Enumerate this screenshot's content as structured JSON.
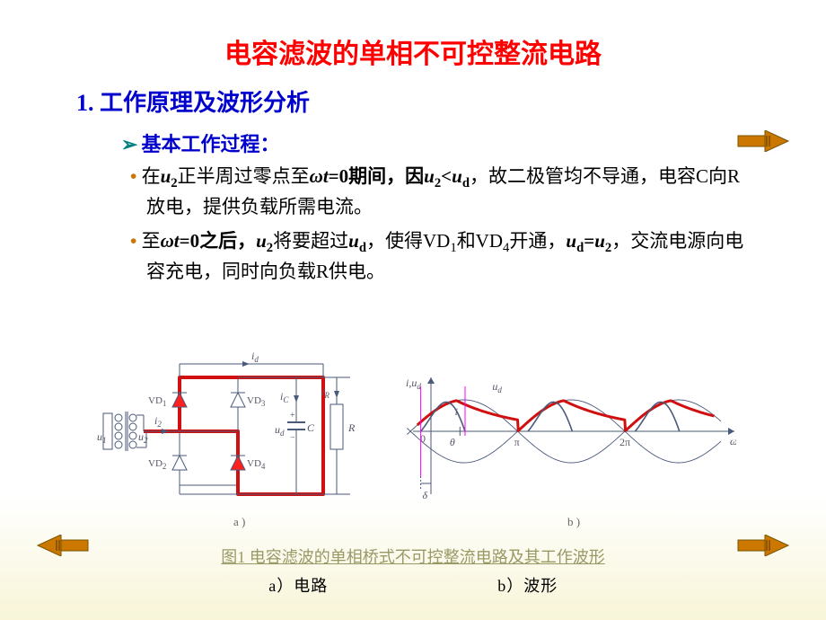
{
  "title": "电容滤波的单相不可控整流电路",
  "heading1": "1.   工作原理及波形分析",
  "subheading": "基本工作过程：",
  "bullet1": {
    "pre": "在",
    "var1": "u",
    "sub1": "2",
    "mid1": "正半周过零点至",
    "var2": "ω",
    "var2b": "t",
    "mid2": "=0期间，因",
    "var3": "u",
    "sub3": "2",
    "lt": "<",
    "var4": "u",
    "sub4": "d",
    "post": "，故二极管均不导通，电容C向R放电，提供负载所需电流。"
  },
  "bullet2": {
    "pre": "至",
    "var1": "ω",
    "var1b": "t",
    "mid1": "=0之后，",
    "var2": "u",
    "sub2": "2",
    "mid2": "将要超过",
    "var3": "u",
    "sub3": "d",
    "mid3": "，使得VD",
    "sub3b": "1",
    "mid4": "和VD",
    "sub4": "4",
    "mid5": "开通，",
    "var4": "u",
    "sub4b": "d",
    "eq": "=",
    "var5": "u",
    "sub5": "2",
    "post": "，交流电源向电容充电，同时向负载R供电。"
  },
  "figcaption": "图1    电容滤波的单相桥式不可控整流电路及其工作波形",
  "figsub_a": "a）电路",
  "figsub_b": "b）波形",
  "circuit": {
    "labels": {
      "id": "i",
      "id_sub": "d",
      "vd1": "VD",
      "vd1s": "1",
      "vd2": "VD",
      "vd2s": "2",
      "vd3": "VD",
      "vd3s": "3",
      "vd4": "VD",
      "vd4s": "4",
      "i2": "i",
      "i2s": "2",
      "u1": "u",
      "u1s": "1",
      "u2": "u",
      "u2s": "2",
      "ic": "i",
      "ics": "C",
      "ir": "i",
      "irs": "R",
      "ud": "u",
      "uds": "d",
      "C": "C",
      "R": "R",
      "a": "a )"
    },
    "colors": {
      "wire": "#4a5a7a",
      "highlight": "#d01010",
      "diode_fill": "#ff2020",
      "diode_stroke": "#4a5a7a",
      "text": "#555566"
    }
  },
  "waveform": {
    "labels": {
      "iud": "i,u",
      "iuds": "d",
      "ud": "u",
      "uds": "d",
      "i": "i",
      "zero": "0",
      "theta": "θ",
      "pi": "π",
      "twopi": "2π",
      "wt": "ωt",
      "delta": "δ",
      "b": "b )"
    },
    "colors": {
      "axis": "#4a5a7a",
      "sine": "#4a5a7a",
      "ud_curve": "#d01010",
      "i_curve": "#4a5a7a",
      "marker": "#ff00ff",
      "text": "#555566"
    },
    "xrange": [
      0,
      8.5
    ],
    "yamp": 35
  },
  "deco_color": "#cc7700"
}
